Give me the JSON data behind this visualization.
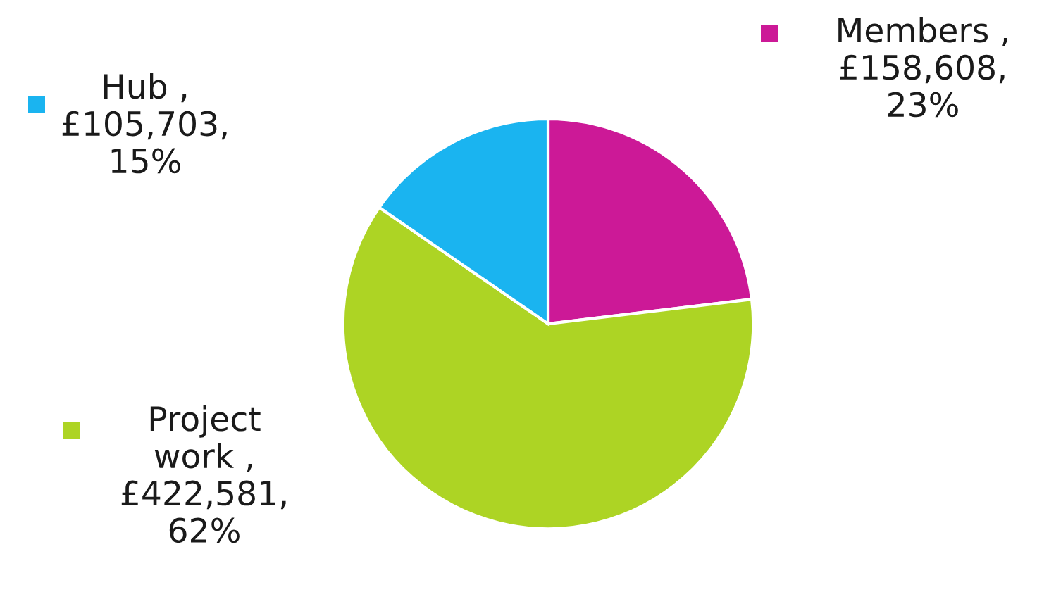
{
  "chart_data": {
    "type": "pie",
    "categories": [
      "Members",
      "Project work",
      "Hub"
    ],
    "values": [
      158608,
      422581,
      105703
    ],
    "colors": [
      "#cc1997",
      "#add424",
      "#1ab4f0"
    ],
    "value_labels": [
      ",\n£158,608,\n23%",
      ",\n£422,581,\n62%",
      ",\n£105,703,\n15%"
    ],
    "legend": "left"
  }
}
